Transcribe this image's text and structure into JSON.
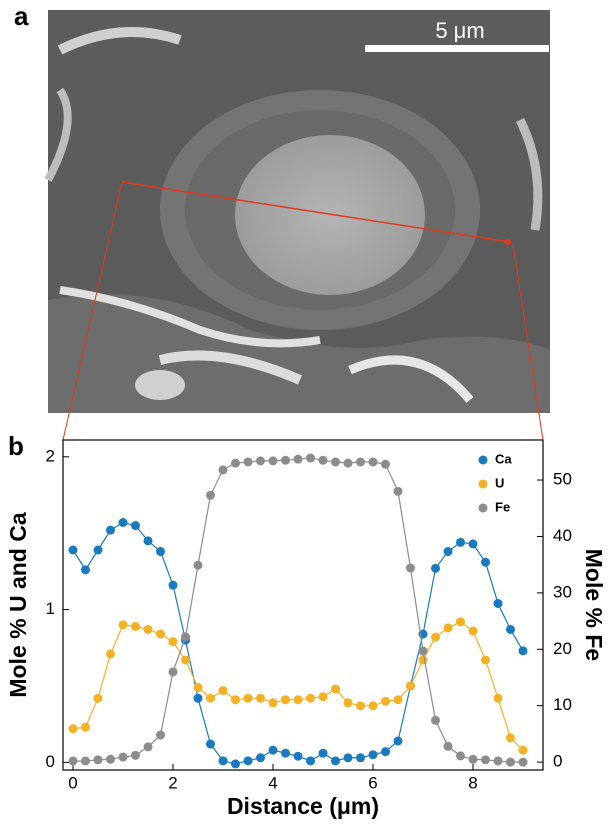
{
  "panel_labels": [
    "a",
    "b"
  ],
  "scale_bar": "5 μm",
  "chart_data": {
    "type": "line",
    "x_label": "Distance (μm)",
    "y_label": "Mole % U and Ca",
    "y2_label": "Mole % Fe",
    "x": [
      0,
      0.25,
      0.5,
      0.75,
      1,
      1.25,
      1.5,
      1.75,
      2,
      2.25,
      2.5,
      2.75,
      3,
      3.25,
      3.5,
      3.75,
      4,
      4.25,
      4.5,
      4.75,
      5,
      5.25,
      5.5,
      5.75,
      6,
      6.25,
      6.5,
      6.75,
      7,
      7.25,
      7.5,
      7.75,
      8,
      8.25,
      8.5,
      8.75,
      9
    ],
    "series": [
      {
        "name": "Ca",
        "color": "#1a7abf",
        "values": [
          1.39,
          1.26,
          1.39,
          1.52,
          1.57,
          1.55,
          1.45,
          1.38,
          1.16,
          0.8,
          0.42,
          0.12,
          0.01,
          -0.01,
          0.01,
          0.03,
          0.08,
          0.06,
          0.04,
          0.01,
          0.06,
          0.01,
          0.03,
          0.03,
          0.05,
          0.07,
          0.14,
          0.5,
          0.84,
          1.27,
          1.38,
          1.44,
          1.43,
          1.31,
          1.04,
          0.87,
          0.73
        ]
      },
      {
        "name": "U",
        "color": "#f4b124",
        "values": [
          0.22,
          0.23,
          0.42,
          0.71,
          0.9,
          0.89,
          0.87,
          0.84,
          0.79,
          0.67,
          0.49,
          0.42,
          0.47,
          0.41,
          0.42,
          0.42,
          0.39,
          0.41,
          0.41,
          0.42,
          0.43,
          0.48,
          0.39,
          0.37,
          0.37,
          0.4,
          0.41,
          0.5,
          0.67,
          0.82,
          0.88,
          0.92,
          0.86,
          0.67,
          0.42,
          0.16,
          0.08
        ]
      },
      {
        "name": "Fe",
        "color": "#8c8c8c",
        "axis": "y2",
        "values": [
          0.2,
          0.2,
          0.4,
          0.5,
          0.9,
          1.2,
          2.7,
          4.8,
          16.0,
          22.2,
          34.9,
          47.3,
          51.8,
          53.0,
          53.2,
          53.4,
          53.4,
          53.5,
          53.7,
          53.9,
          53.5,
          53.2,
          53.0,
          53.2,
          53.2,
          52.8,
          48.0,
          34.4,
          19.7,
          7.4,
          2.8,
          1.1,
          0.5,
          0.4,
          0.2,
          0,
          0
        ]
      }
    ],
    "xlim": [
      -0.2,
      9.4
    ],
    "xticks": [
      0,
      2,
      4,
      6,
      8
    ],
    "ylim": [
      -0.05,
      2.11
    ],
    "yticks": [
      0,
      1,
      2
    ],
    "y2lim": [
      -1.4,
      57.1
    ],
    "y2ticks": [
      0,
      10,
      20,
      30,
      40,
      50
    ],
    "legend": "top-right"
  }
}
